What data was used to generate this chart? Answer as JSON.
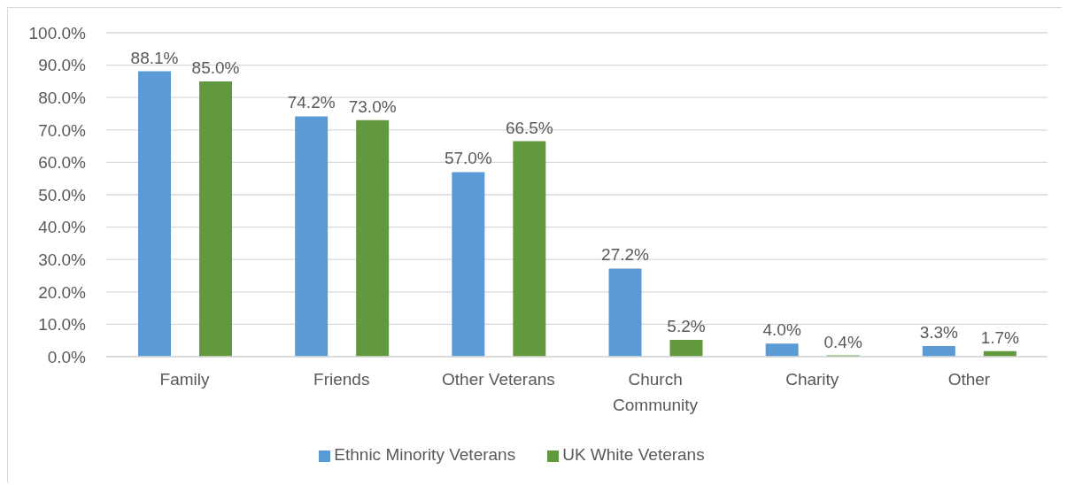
{
  "chart_data": {
    "type": "bar",
    "categories": [
      "Family",
      "Friends",
      "Other Veterans",
      "Church Community",
      "Charity",
      "Other"
    ],
    "series": [
      {
        "name": "Ethnic Minority Veterans",
        "color": "#5b9bd5",
        "values": [
          88.1,
          74.2,
          57.0,
          27.2,
          4.0,
          3.3
        ],
        "value_labels": [
          "88.1%",
          "74.2%",
          "57.0%",
          "27.2%",
          "4.0%",
          "3.3%"
        ]
      },
      {
        "name": "UK White Veterans",
        "color": "#62993e",
        "values": [
          85.0,
          73.0,
          66.5,
          5.2,
          0.4,
          1.7
        ],
        "value_labels": [
          "85.0%",
          "73.0%",
          "66.5%",
          "5.2%",
          "0.4%",
          "1.7%"
        ]
      }
    ],
    "ylim": [
      0,
      100
    ],
    "yticks": [
      {
        "value": 0,
        "label": "0.0%"
      },
      {
        "value": 10,
        "label": "10.0%"
      },
      {
        "value": 20,
        "label": "20.0%"
      },
      {
        "value": 30,
        "label": "30.0%"
      },
      {
        "value": 40,
        "label": "40.0%"
      },
      {
        "value": 50,
        "label": "50.0%"
      },
      {
        "value": 60,
        "label": "60.0%"
      },
      {
        "value": 70,
        "label": "70.0%"
      },
      {
        "value": 80,
        "label": "80.0%"
      },
      {
        "value": 90,
        "label": "90.0%"
      },
      {
        "value": 100,
        "label": "100.0%"
      }
    ],
    "grid": "y",
    "legend": "bottom"
  }
}
